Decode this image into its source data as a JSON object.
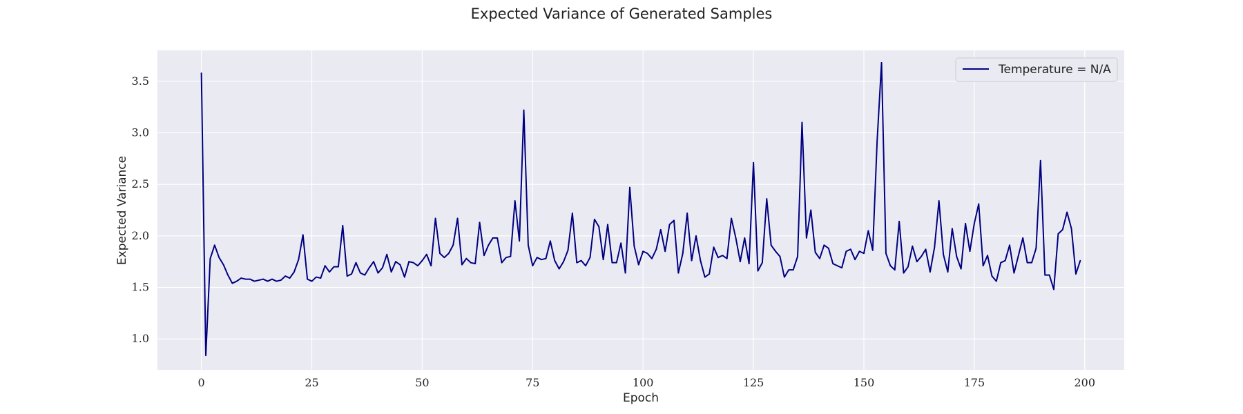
{
  "colors": {
    "plot_background": "#eaeaf2",
    "grid": "#ffffff",
    "line": "#000080",
    "text": "#222222"
  },
  "chart_data": {
    "type": "line",
    "title": "Expected Variance of Generated Samples",
    "xlabel": "Epoch",
    "ylabel": "Expected Variance",
    "xlim": [
      -9.95,
      208.95
    ],
    "ylim": [
      0.7,
      3.8
    ],
    "xticks": [
      0,
      25,
      50,
      75,
      100,
      125,
      150,
      175,
      200
    ],
    "yticks": [
      1.0,
      1.5,
      2.0,
      2.5,
      3.0,
      3.5
    ],
    "xtick_labels": [
      "0",
      "25",
      "50",
      "75",
      "100",
      "125",
      "150",
      "175",
      "200"
    ],
    "ytick_labels": [
      "1.0",
      "1.5",
      "2.0",
      "2.5",
      "3.0",
      "3.5"
    ],
    "grid": true,
    "legend_position": "top-right",
    "series": [
      {
        "name": "Temperature = N/A",
        "color": "#000080",
        "x": [
          0,
          1,
          2,
          3,
          4,
          5,
          6,
          7,
          8,
          9,
          10,
          11,
          12,
          13,
          14,
          15,
          16,
          17,
          18,
          19,
          20,
          21,
          22,
          23,
          24,
          25,
          26,
          27,
          28,
          29,
          30,
          31,
          32,
          33,
          34,
          35,
          36,
          37,
          38,
          39,
          40,
          41,
          42,
          43,
          44,
          45,
          46,
          47,
          48,
          49,
          50,
          51,
          52,
          53,
          54,
          55,
          56,
          57,
          58,
          59,
          60,
          61,
          62,
          63,
          64,
          65,
          66,
          67,
          68,
          69,
          70,
          71,
          72,
          73,
          74,
          75,
          76,
          77,
          78,
          79,
          80,
          81,
          82,
          83,
          84,
          85,
          86,
          87,
          88,
          89,
          90,
          91,
          92,
          93,
          94,
          95,
          96,
          97,
          98,
          99,
          100,
          101,
          102,
          103,
          104,
          105,
          106,
          107,
          108,
          109,
          110,
          111,
          112,
          113,
          114,
          115,
          116,
          117,
          118,
          119,
          120,
          121,
          122,
          123,
          124,
          125,
          126,
          127,
          128,
          129,
          130,
          131,
          132,
          133,
          134,
          135,
          136,
          137,
          138,
          139,
          140,
          141,
          142,
          143,
          144,
          145,
          146,
          147,
          148,
          149,
          150,
          151,
          152,
          153,
          154,
          155,
          156,
          157,
          158,
          159,
          160,
          161,
          162,
          163,
          164,
          165,
          166,
          167,
          168,
          169,
          170,
          171,
          172,
          173,
          174,
          175,
          176,
          177,
          178,
          179,
          180,
          181,
          182,
          183,
          184,
          185,
          186,
          187,
          188,
          189,
          190,
          191,
          192,
          193,
          194,
          195,
          196,
          197,
          198,
          199
        ],
        "values": [
          3.58,
          0.84,
          1.78,
          1.91,
          1.79,
          1.72,
          1.62,
          1.54,
          1.56,
          1.59,
          1.58,
          1.58,
          1.56,
          1.57,
          1.58,
          1.56,
          1.58,
          1.56,
          1.57,
          1.61,
          1.59,
          1.65,
          1.77,
          2.01,
          1.58,
          1.56,
          1.6,
          1.59,
          1.71,
          1.65,
          1.7,
          1.7,
          2.1,
          1.61,
          1.63,
          1.74,
          1.64,
          1.62,
          1.69,
          1.75,
          1.64,
          1.69,
          1.82,
          1.65,
          1.75,
          1.72,
          1.6,
          1.75,
          1.74,
          1.71,
          1.76,
          1.82,
          1.71,
          2.17,
          1.83,
          1.79,
          1.83,
          1.91,
          2.17,
          1.72,
          1.78,
          1.74,
          1.73,
          2.13,
          1.81,
          1.91,
          1.98,
          1.98,
          1.74,
          1.79,
          1.8,
          2.34,
          1.95,
          3.22,
          1.91,
          1.71,
          1.79,
          1.77,
          1.78,
          1.95,
          1.76,
          1.68,
          1.75,
          1.86,
          2.22,
          1.74,
          1.76,
          1.71,
          1.79,
          2.16,
          2.09,
          1.77,
          2.11,
          1.74,
          1.74,
          1.93,
          1.64,
          2.47,
          1.9,
          1.72,
          1.85,
          1.83,
          1.78,
          1.87,
          2.06,
          1.85,
          2.11,
          2.15,
          1.64,
          1.83,
          2.22,
          1.76,
          2.0,
          1.76,
          1.6,
          1.63,
          1.89,
          1.79,
          1.81,
          1.78,
          2.17,
          1.98,
          1.75,
          1.98,
          1.73,
          2.71,
          1.66,
          1.74,
          2.36,
          1.91,
          1.85,
          1.8,
          1.6,
          1.67,
          1.67,
          1.8,
          3.1,
          1.98,
          2.25,
          1.84,
          1.78,
          1.91,
          1.88,
          1.73,
          1.71,
          1.69,
          1.85,
          1.87,
          1.77,
          1.85,
          1.83,
          2.05,
          1.86,
          2.92,
          3.68,
          1.83,
          1.71,
          1.67,
          2.14,
          1.64,
          1.7,
          1.9,
          1.75,
          1.8,
          1.87,
          1.65,
          1.89,
          2.34,
          1.82,
          1.65,
          2.07,
          1.8,
          1.68,
          2.12,
          1.85,
          2.12,
          2.31,
          1.71,
          1.81,
          1.61,
          1.56,
          1.74,
          1.76,
          1.91,
          1.64,
          1.81,
          1.98,
          1.74,
          1.74,
          1.88,
          2.73,
          1.62,
          1.62,
          1.48,
          2.02,
          2.06,
          2.23,
          2.07,
          1.63,
          1.76
        ]
      }
    ]
  }
}
